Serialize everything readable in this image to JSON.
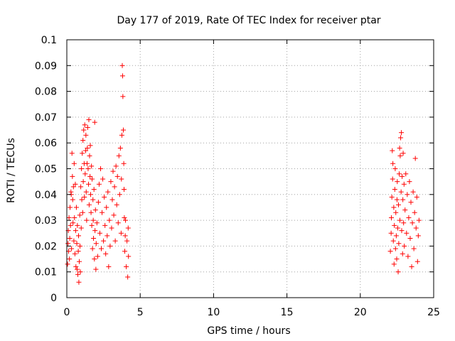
{
  "chart_data": {
    "type": "scatter",
    "title": "Day 177 of 2019, Rate Of TEC Index for receiver ptar",
    "xlabel": "GPS time / hours",
    "ylabel": "ROTI / TECUs",
    "xlim": [
      0,
      25
    ],
    "ylim": [
      0,
      0.1
    ],
    "xticks": [
      0,
      5,
      10,
      15,
      20,
      25
    ],
    "yticks": [
      0,
      0.01,
      0.02,
      0.03,
      0.04,
      0.05,
      0.06,
      0.07,
      0.08,
      0.09,
      0.1
    ],
    "xtick_labels": [
      "0",
      "5",
      "10",
      "15",
      "20",
      "25"
    ],
    "ytick_labels": [
      "0",
      "0.01",
      "0.02",
      "0.03",
      "0.04",
      "0.05",
      "0.06",
      "0.07",
      "0.08",
      "0.09",
      "0.1"
    ],
    "grid": true,
    "marker": "+",
    "color": "#ff0000",
    "series": [
      {
        "name": "ROTI",
        "points": [
          [
            0.05,
            0.013
          ],
          [
            0.08,
            0.021
          ],
          [
            0.1,
            0.026
          ],
          [
            0.12,
            0.018
          ],
          [
            0.15,
            0.031
          ],
          [
            0.18,
            0.015
          ],
          [
            0.2,
            0.023
          ],
          [
            0.22,
            0.035
          ],
          [
            0.25,
            0.028
          ],
          [
            0.28,
            0.041
          ],
          [
            0.3,
            0.04
          ],
          [
            0.32,
            0.019
          ],
          [
            0.35,
            0.056
          ],
          [
            0.38,
            0.047
          ],
          [
            0.4,
            0.038
          ],
          [
            0.42,
            0.029
          ],
          [
            0.45,
            0.043
          ],
          [
            0.48,
            0.022
          ],
          [
            0.5,
            0.052
          ],
          [
            0.52,
            0.031
          ],
          [
            0.55,
            0.017
          ],
          [
            0.58,
            0.044
          ],
          [
            0.6,
            0.026
          ],
          [
            0.62,
            0.012
          ],
          [
            0.65,
            0.035
          ],
          [
            0.68,
            0.021
          ],
          [
            0.7,
            0.011
          ],
          [
            0.72,
            0.028
          ],
          [
            0.75,
            0.009
          ],
          [
            0.78,
            0.018
          ],
          [
            0.8,
            0.024
          ],
          [
            0.82,
            0.006
          ],
          [
            0.85,
            0.014
          ],
          [
            0.88,
            0.032
          ],
          [
            0.9,
            0.02
          ],
          [
            0.92,
            0.01
          ],
          [
            0.95,
            0.043
          ],
          [
            0.98,
            0.027
          ],
          [
            1.0,
            0.05
          ],
          [
            1.02,
            0.038
          ],
          [
            1.05,
            0.056
          ],
          [
            1.08,
            0.033
          ],
          [
            1.1,
            0.061
          ],
          [
            1.12,
            0.045
          ],
          [
            1.15,
            0.065
          ],
          [
            1.18,
            0.052
          ],
          [
            1.2,
            0.039
          ],
          [
            1.22,
            0.067
          ],
          [
            1.25,
            0.048
          ],
          [
            1.28,
            0.057
          ],
          [
            1.3,
            0.063
          ],
          [
            1.32,
            0.041
          ],
          [
            1.35,
            0.03
          ],
          [
            1.38,
            0.052
          ],
          [
            1.4,
            0.058
          ],
          [
            1.42,
            0.066
          ],
          [
            1.45,
            0.05
          ],
          [
            1.48,
            0.044
          ],
          [
            1.5,
            0.069
          ],
          [
            1.52,
            0.036
          ],
          [
            1.55,
            0.055
          ],
          [
            1.58,
            0.047
          ],
          [
            1.6,
            0.059
          ],
          [
            1.62,
            0.04
          ],
          [
            1.65,
            0.033
          ],
          [
            1.68,
            0.051
          ],
          [
            1.7,
            0.028
          ],
          [
            1.72,
            0.046
          ],
          [
            1.75,
            0.019
          ],
          [
            1.78,
            0.038
          ],
          [
            1.8,
            0.03
          ],
          [
            1.82,
            0.023
          ],
          [
            1.85,
            0.042
          ],
          [
            1.88,
            0.015
          ],
          [
            1.9,
            0.068
          ],
          [
            1.92,
            0.026
          ],
          [
            1.95,
            0.034
          ],
          [
            1.98,
            0.011
          ],
          [
            2.0,
            0.021
          ],
          [
            2.05,
            0.029
          ],
          [
            2.1,
            0.016
          ],
          [
            2.15,
            0.037
          ],
          [
            2.2,
            0.044
          ],
          [
            2.25,
            0.025
          ],
          [
            2.3,
            0.05
          ],
          [
            2.35,
            0.019
          ],
          [
            2.4,
            0.033
          ],
          [
            2.45,
            0.046
          ],
          [
            2.5,
            0.022
          ],
          [
            2.55,
            0.039
          ],
          [
            2.6,
            0.028
          ],
          [
            2.65,
            0.017
          ],
          [
            2.7,
            0.035
          ],
          [
            2.75,
            0.024
          ],
          [
            2.8,
            0.041
          ],
          [
            2.85,
            0.012
          ],
          [
            2.9,
            0.03
          ],
          [
            2.95,
            0.02
          ],
          [
            3.0,
            0.045
          ],
          [
            3.05,
            0.027
          ],
          [
            3.1,
            0.038
          ],
          [
            3.15,
            0.049
          ],
          [
            3.2,
            0.032
          ],
          [
            3.25,
            0.043
          ],
          [
            3.3,
            0.022
          ],
          [
            3.35,
            0.051
          ],
          [
            3.4,
            0.036
          ],
          [
            3.45,
            0.047
          ],
          [
            3.5,
            0.029
          ],
          [
            3.55,
            0.055
          ],
          [
            3.6,
            0.04
          ],
          [
            3.65,
            0.058
          ],
          [
            3.7,
            0.025
          ],
          [
            3.72,
            0.046
          ],
          [
            3.75,
            0.063
          ],
          [
            3.78,
            0.09
          ],
          [
            3.8,
            0.086
          ],
          [
            3.82,
            0.078
          ],
          [
            3.85,
            0.065
          ],
          [
            3.88,
            0.052
          ],
          [
            3.9,
            0.042
          ],
          [
            3.92,
            0.031
          ],
          [
            3.95,
            0.018
          ],
          [
            3.98,
            0.024
          ],
          [
            4.0,
            0.03
          ],
          [
            4.05,
            0.012
          ],
          [
            4.1,
            0.022
          ],
          [
            4.15,
            0.008
          ],
          [
            4.18,
            0.027
          ],
          [
            4.2,
            0.016
          ],
          [
            22.05,
            0.018
          ],
          [
            22.1,
            0.025
          ],
          [
            22.12,
            0.031
          ],
          [
            22.15,
            0.039
          ],
          [
            22.18,
            0.057
          ],
          [
            22.2,
            0.046
          ],
          [
            22.22,
            0.052
          ],
          [
            22.25,
            0.022
          ],
          [
            22.28,
            0.035
          ],
          [
            22.3,
            0.013
          ],
          [
            22.32,
            0.028
          ],
          [
            22.35,
            0.042
          ],
          [
            22.38,
            0.05
          ],
          [
            22.4,
            0.019
          ],
          [
            22.42,
            0.033
          ],
          [
            22.45,
            0.024
          ],
          [
            22.48,
            0.015
          ],
          [
            22.5,
            0.038
          ],
          [
            22.52,
            0.045
          ],
          [
            22.55,
            0.027
          ],
          [
            22.58,
            0.01
          ],
          [
            22.6,
            0.036
          ],
          [
            22.62,
            0.021
          ],
          [
            22.65,
            0.048
          ],
          [
            22.68,
            0.058
          ],
          [
            22.7,
            0.03
          ],
          [
            22.72,
            0.055
          ],
          [
            22.75,
            0.062
          ],
          [
            22.78,
            0.041
          ],
          [
            22.8,
            0.064
          ],
          [
            22.82,
            0.026
          ],
          [
            22.85,
            0.047
          ],
          [
            22.88,
            0.017
          ],
          [
            22.9,
            0.038
          ],
          [
            22.92,
            0.056
          ],
          [
            22.95,
            0.029
          ],
          [
            22.98,
            0.044
          ],
          [
            23.0,
            0.02
          ],
          [
            23.05,
            0.034
          ],
          [
            23.1,
            0.048
          ],
          [
            23.15,
            0.025
          ],
          [
            23.2,
            0.04
          ],
          [
            23.25,
            0.016
          ],
          [
            23.3,
            0.031
          ],
          [
            23.35,
            0.045
          ],
          [
            23.4,
            0.023
          ],
          [
            23.45,
            0.037
          ],
          [
            23.5,
            0.012
          ],
          [
            23.55,
            0.029
          ],
          [
            23.6,
            0.041
          ],
          [
            23.65,
            0.019
          ],
          [
            23.7,
            0.033
          ],
          [
            23.75,
            0.054
          ],
          [
            23.8,
            0.027
          ],
          [
            23.85,
            0.039
          ],
          [
            23.9,
            0.014
          ],
          [
            23.95,
            0.024
          ],
          [
            24.0,
            0.03
          ]
        ]
      }
    ]
  }
}
